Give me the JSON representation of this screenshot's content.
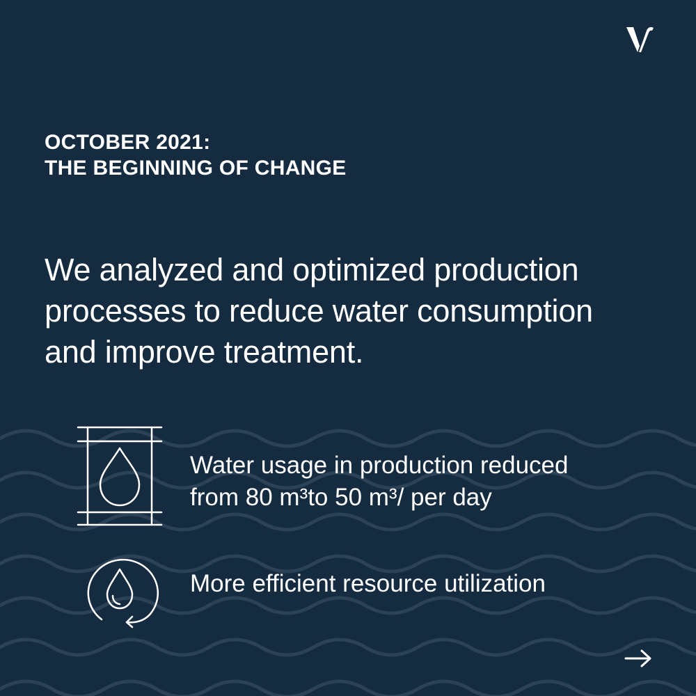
{
  "colors": {
    "background": "#152b40",
    "wave": "#2c4257",
    "text": "#ffffff"
  },
  "brand": {
    "logo_icon": "v-monogram-icon"
  },
  "header": {
    "line1": "OCTOBER 2021:",
    "line2": "THE BEGINNING OF CHANGE"
  },
  "lead": {
    "lines": [
      "We analyzed and optimized production",
      "processes to reduce water consumption",
      "and improve treatment."
    ]
  },
  "features": [
    {
      "icon": "water-tank-drop-icon",
      "lines": [
        "Water usage in production reduced",
        "from 80 m³to 50 m³/ per day"
      ]
    },
    {
      "icon": "water-cycle-drop-icon",
      "lines": [
        "More efficient resource utilization"
      ]
    }
  ],
  "navigation": {
    "next_icon": "arrow-right-icon"
  }
}
